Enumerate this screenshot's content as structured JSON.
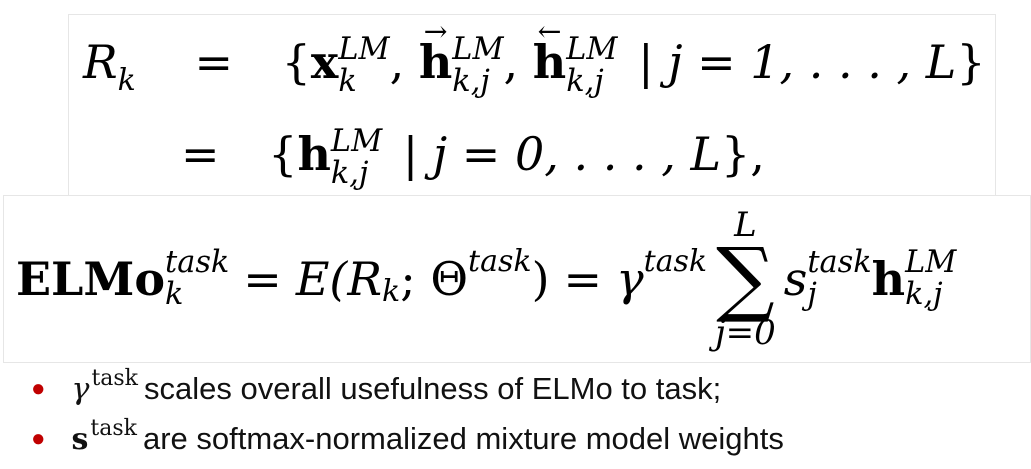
{
  "equations": {
    "rk": {
      "lhs": "R",
      "lhs_sub": "k",
      "eq": "=",
      "set1": {
        "open": "{",
        "x": "x",
        "x_sup": "LM",
        "x_sub": "k",
        "comma": ",",
        "h_fwd": "h",
        "h_fwd_arrow": "→",
        "h_fwd_sup": "LM",
        "h_fwd_sub": "k,j",
        "h_bwd": "h",
        "h_bwd_arrow": "←",
        "h_bwd_sup": "LM",
        "h_bwd_sub": "k,j",
        "cond": "| j = 1, . . . , L",
        "close": "}"
      },
      "set2": {
        "eq": "=",
        "open": "{",
        "h": "h",
        "h_sup": "LM",
        "h_sub": "k,j",
        "cond": "| j = 0, . . . , L",
        "close": "},"
      }
    },
    "elmo": {
      "name": "ELMo",
      "name_sup": "task",
      "name_sub": "k",
      "eq1": "=",
      "E": "E(R",
      "E_sub": "k",
      "theta": "; Θ",
      "theta_sup": "task",
      "close": ")",
      "eq2": "=",
      "gamma": "γ",
      "gamma_sup": "task",
      "sum_top": "L",
      "sum_sym": "∑",
      "sum_bottom": "j=0",
      "s": "s",
      "s_sup": "task",
      "s_sub": "j",
      "h": "h",
      "h_sup": "LM",
      "h_sub": "k,j"
    }
  },
  "bullets": [
    {
      "symbol": "γ",
      "sup": "task",
      "text": "scales overall usefulness of ELMo to task;"
    },
    {
      "symbol": "s",
      "sup": "task",
      "text": "are softmax-normalized mixture model weights"
    }
  ],
  "colors": {
    "bullet": "#c00000",
    "border": "#e6e6e6"
  }
}
